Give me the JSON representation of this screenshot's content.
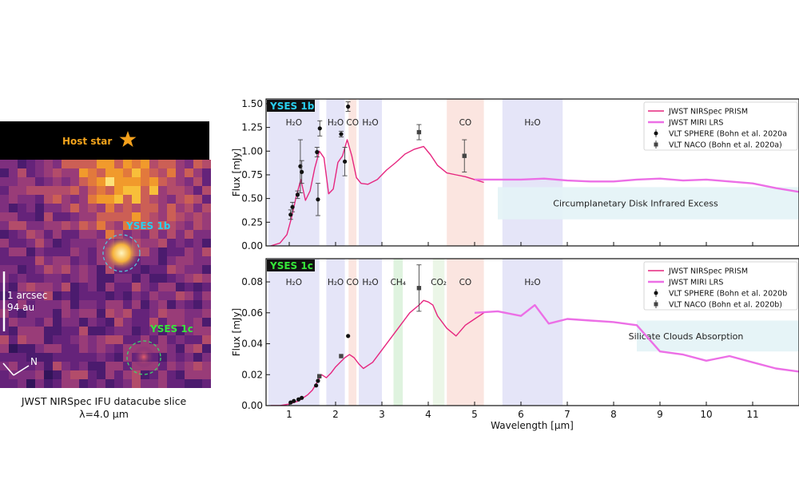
{
  "image_panel": {
    "host_star_label": "Host star",
    "planet_b_label": "YSES 1b",
    "planet_c_label": "YSES 1c",
    "scale_label_1": "1 arcsec",
    "scale_label_2": "94 au",
    "north_label": "N",
    "caption_line1": "JWST NIRSpec IFU datacube slice",
    "caption_line2": "λ=4.0 μm"
  },
  "colors": {
    "nirspec": "#e6267f",
    "miri": "#ec6fe6",
    "planet_b_tag": "#2ad0ef",
    "planet_c_tag": "#36e83a",
    "band_h2o": "#dcdcf6",
    "band_co": "#f9dcd6",
    "band_ch4": "#d4efd4",
    "band_co2": "#e4f3df",
    "excess_box": "#e3f3f6"
  },
  "chart_data": [
    {
      "type": "line",
      "panel_tag": "YSES 1b",
      "xlabel": "",
      "ylabel": "Flux [mJy]",
      "xlim": [
        0.5,
        12.0
      ],
      "ylim": [
        0.0,
        1.55
      ],
      "y_ticks": [
        "0.00",
        "0.25",
        "0.50",
        "0.75",
        "1.00",
        "1.25",
        "1.50"
      ],
      "bands": [
        {
          "label": "H₂O",
          "type": "h2o",
          "x0": 0.55,
          "x1": 1.65
        },
        {
          "label": "H₂O",
          "type": "h2o",
          "x0": 1.8,
          "x1": 2.2
        },
        {
          "label": "CO",
          "type": "co",
          "x0": 2.28,
          "x1": 2.45
        },
        {
          "label": "H₂O",
          "type": "h2o",
          "x0": 2.5,
          "x1": 3.0
        },
        {
          "label": "CO",
          "type": "co",
          "x0": 4.4,
          "x1": 5.2
        },
        {
          "label": "H₂O",
          "type": "h2o",
          "x0": 5.6,
          "x1": 6.9
        }
      ],
      "annotation": {
        "text": "Circumplanetary Disk Infrared Excess",
        "x0": 5.5,
        "x1": 12.0,
        "y0": 0.28,
        "y1": 0.62
      },
      "legend": [
        "JWST NIRSpec PRISM",
        "JWST MIRI LRS",
        "VLT SPHERE (Bohn et al. 2020a",
        "VLT NACO (Bohn et al. 2020a)"
      ],
      "series": [
        {
          "name": "JWST NIRSpec PRISM",
          "kind": "line",
          "x": [
            0.6,
            0.8,
            0.95,
            1.05,
            1.15,
            1.25,
            1.35,
            1.45,
            1.55,
            1.65,
            1.75,
            1.85,
            1.95,
            2.05,
            2.15,
            2.25,
            2.35,
            2.45,
            2.55,
            2.7,
            2.9,
            3.1,
            3.3,
            3.5,
            3.7,
            3.9,
            4.05,
            4.2,
            4.4,
            4.6,
            4.8,
            5.0,
            5.2
          ],
          "y": [
            0.0,
            0.03,
            0.12,
            0.3,
            0.52,
            0.7,
            0.48,
            0.58,
            0.82,
            1.0,
            0.93,
            0.55,
            0.6,
            0.88,
            0.95,
            1.12,
            0.95,
            0.72,
            0.66,
            0.65,
            0.7,
            0.8,
            0.88,
            0.97,
            1.02,
            1.05,
            0.96,
            0.85,
            0.77,
            0.75,
            0.73,
            0.7,
            0.67
          ]
        },
        {
          "name": "JWST MIRI LRS",
          "kind": "line",
          "x": [
            5.0,
            5.5,
            6.0,
            6.5,
            7.0,
            7.5,
            8.0,
            8.5,
            9.0,
            9.5,
            10.0,
            10.5,
            11.0,
            11.5,
            12.0
          ],
          "y": [
            0.7,
            0.7,
            0.7,
            0.71,
            0.69,
            0.68,
            0.68,
            0.7,
            0.71,
            0.69,
            0.7,
            0.68,
            0.66,
            0.61,
            0.57
          ]
        },
        {
          "name": "VLT SPHERE (Bohn et al. 2020a",
          "kind": "points",
          "x": [
            1.03,
            1.07,
            1.18,
            1.24,
            1.27,
            1.6,
            1.62,
            1.66,
            2.12,
            2.2,
            2.27
          ],
          "y": [
            0.33,
            0.41,
            0.54,
            0.84,
            0.78,
            0.99,
            0.49,
            1.24,
            1.18,
            0.89,
            1.47
          ],
          "err": [
            0.05,
            0.05,
            0.04,
            0.28,
            0.12,
            0.05,
            0.17,
            0.08,
            0.03,
            0.15,
            0.05
          ]
        },
        {
          "name": "VLT NACO (Bohn et al. 2020a)",
          "kind": "squares",
          "x": [
            3.8,
            4.78
          ],
          "y": [
            1.2,
            0.95
          ],
          "err": [
            0.08,
            0.17
          ]
        }
      ]
    },
    {
      "type": "line",
      "panel_tag": "YSES 1c",
      "xlabel": "Wavelength [μm]",
      "ylabel": "Flux [mJy]",
      "xlim": [
        0.5,
        12.0
      ],
      "ylim": [
        0.0,
        0.095
      ],
      "y_ticks": [
        "0.00",
        "0.02",
        "0.04",
        "0.06",
        "0.08"
      ],
      "x_ticks": [
        "1",
        "2",
        "3",
        "4",
        "5",
        "6",
        "7",
        "8",
        "9",
        "10",
        "11"
      ],
      "bands": [
        {
          "label": "H₂O",
          "type": "h2o",
          "x0": 0.55,
          "x1": 1.65
        },
        {
          "label": "H₂O",
          "type": "h2o",
          "x0": 1.8,
          "x1": 2.2
        },
        {
          "label": "CO",
          "type": "co",
          "x0": 2.28,
          "x1": 2.45
        },
        {
          "label": "H₂O",
          "type": "h2o",
          "x0": 2.5,
          "x1": 3.0
        },
        {
          "label": "CH₄",
          "type": "ch4",
          "x0": 3.25,
          "x1": 3.45
        },
        {
          "label": "CO₂",
          "type": "co2",
          "x0": 4.1,
          "x1": 4.35
        },
        {
          "label": "CO",
          "type": "co",
          "x0": 4.4,
          "x1": 5.2
        },
        {
          "label": "H₂O",
          "type": "h2o",
          "x0": 5.6,
          "x1": 6.9
        }
      ],
      "annotation": {
        "text": "Silicate Clouds Absorption",
        "x0": 8.5,
        "x1": 12.0,
        "y0": 0.035,
        "y1": 0.055
      },
      "legend": [
        "JWST NIRSpec PRISM",
        "JWST MIRI LRS",
        "VLT SPHERE (Bohn et al. 2020b",
        "VLT NACO (Bohn et al. 2020b)"
      ],
      "series": [
        {
          "name": "JWST NIRSpec PRISM",
          "kind": "line",
          "x": [
            0.6,
            0.8,
            1.0,
            1.2,
            1.4,
            1.5,
            1.6,
            1.7,
            1.8,
            1.9,
            2.0,
            2.1,
            2.2,
            2.3,
            2.4,
            2.5,
            2.6,
            2.8,
            3.0,
            3.2,
            3.4,
            3.6,
            3.8,
            3.9,
            4.0,
            4.1,
            4.2,
            4.4,
            4.6,
            4.8,
            5.0,
            5.2
          ],
          "y": [
            0.0,
            0.0,
            0.001,
            0.003,
            0.007,
            0.01,
            0.015,
            0.02,
            0.018,
            0.021,
            0.025,
            0.028,
            0.031,
            0.033,
            0.031,
            0.027,
            0.024,
            0.028,
            0.036,
            0.044,
            0.052,
            0.06,
            0.065,
            0.068,
            0.067,
            0.065,
            0.058,
            0.05,
            0.045,
            0.052,
            0.056,
            0.06
          ]
        },
        {
          "name": "JWST MIRI LRS",
          "kind": "line",
          "x": [
            5.0,
            5.5,
            6.0,
            6.3,
            6.6,
            7.0,
            7.5,
            8.0,
            8.5,
            9.0,
            9.5,
            10.0,
            10.5,
            11.0,
            11.5,
            12.0
          ],
          "y": [
            0.06,
            0.061,
            0.058,
            0.065,
            0.053,
            0.056,
            0.055,
            0.054,
            0.052,
            0.035,
            0.033,
            0.029,
            0.032,
            0.028,
            0.024,
            0.022
          ]
        },
        {
          "name": "VLT SPHERE (Bohn et al. 2020b",
          "kind": "points",
          "x": [
            1.03,
            1.1,
            1.2,
            1.27,
            1.58,
            1.62,
            2.27
          ],
          "y": [
            0.002,
            0.003,
            0.004,
            0.005,
            0.013,
            0.016,
            0.045
          ]
        },
        {
          "name": "VLT NACO (Bohn et al. 2020b)",
          "kind": "squares",
          "x": [
            1.65,
            2.12,
            3.8
          ],
          "y": [
            0.019,
            0.032,
            0.076
          ],
          "err": [
            0.0,
            0.0,
            0.015
          ]
        }
      ]
    }
  ]
}
